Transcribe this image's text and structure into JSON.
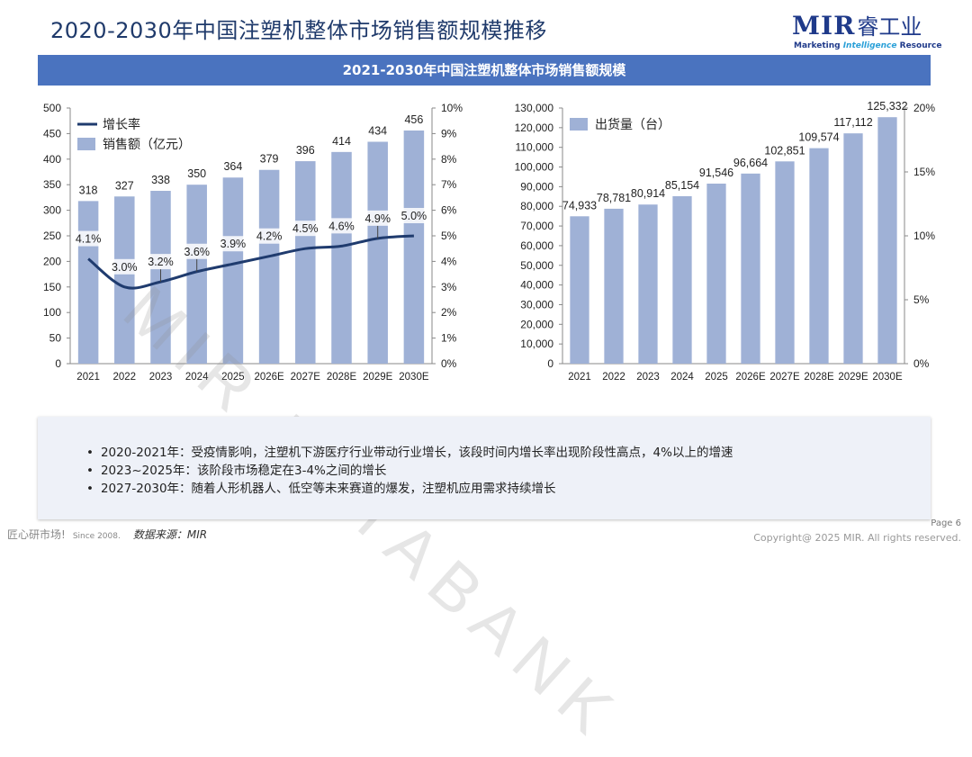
{
  "header": {
    "title": "2020-2030年中国注塑机整体市场销售额规模推移",
    "logo_mir": "MIR",
    "logo_cn": "睿工业",
    "logo_sub_1": "Marketing ",
    "logo_sub_2": "Intelligence",
    "logo_sub_3": " Resource",
    "banner": "2021-2030年中国注塑机整体市场销售额规模"
  },
  "watermark": "MIR DATABANK",
  "chart_data": [
    {
      "type": "bar+line",
      "categories": [
        "2021",
        "2022",
        "2023",
        "2024",
        "2025",
        "2026E",
        "2027E",
        "2028E",
        "2029E",
        "2030E"
      ],
      "series": [
        {
          "name": "销售额（亿元）",
          "kind": "bar",
          "axis": "left",
          "values": [
            318,
            327,
            338,
            350,
            364,
            379,
            396,
            414,
            434,
            456
          ],
          "labels": [
            "318",
            "327",
            "338",
            "350",
            "364",
            "379",
            "396",
            "414",
            "434",
            "456"
          ]
        },
        {
          "name": "增长率",
          "kind": "line",
          "axis": "right",
          "values": [
            4.1,
            3.0,
            3.2,
            3.6,
            3.9,
            4.2,
            4.5,
            4.6,
            4.9,
            5.0
          ],
          "labels": [
            "4.1%",
            "3.0%",
            "3.2%",
            "3.6%",
            "3.9%",
            "4.2%",
            "4.5%",
            "4.6%",
            "4.9%",
            "5.0%"
          ]
        }
      ],
      "ylim": [
        0,
        500
      ],
      "yticks": [
        "0",
        "50",
        "100",
        "150",
        "200",
        "250",
        "300",
        "350",
        "400",
        "450",
        "500"
      ],
      "y2lim": [
        0,
        10
      ],
      "y2ticks": [
        "0%",
        "1%",
        "2%",
        "3%",
        "4%",
        "5%",
        "6%",
        "7%",
        "8%",
        "9%",
        "10%"
      ],
      "legend": [
        "增长率",
        "销售额（亿元）"
      ],
      "colors": {
        "bar": "#9fb1d6",
        "line": "#1f3b6e"
      }
    },
    {
      "type": "bar",
      "categories": [
        "2021",
        "2022",
        "2023",
        "2024",
        "2025",
        "2026E",
        "2027E",
        "2028E",
        "2029E",
        "2030E"
      ],
      "series": [
        {
          "name": "出货量（台）",
          "kind": "bar",
          "axis": "left",
          "values": [
            74933,
            78781,
            80914,
            85154,
            91546,
            96664,
            102851,
            109574,
            117112,
            125332
          ],
          "labels": [
            "74,933",
            "78,781",
            "80,914",
            "85,154",
            "91,546",
            "96,664",
            "102,851",
            "109,574",
            "117,112",
            "125,332"
          ]
        }
      ],
      "ylim": [
        0,
        130000
      ],
      "yticks": [
        "0",
        "10,000",
        "20,000",
        "30,000",
        "40,000",
        "50,000",
        "60,000",
        "70,000",
        "80,000",
        "90,000",
        "100,000",
        "110,000",
        "120,000",
        "130,000"
      ],
      "y2lim": [
        0,
        20
      ],
      "y2ticks": [
        "0%",
        "5%",
        "10%",
        "15%",
        "20%"
      ],
      "legend": [
        "出货量（台）"
      ],
      "colors": {
        "bar": "#9fb1d6"
      }
    }
  ],
  "notes": [
    "2020-2021年：受疫情影响，注塑机下游医疗行业带动行业增长，该段时间内增长率出现阶段性高点，4%以上的增速",
    "2023~2025年：该阶段市场稳定在3-4%之间的增长",
    "2027-2030年：随着人形机器人、低空等未来赛道的爆发，注塑机应用需求持续增长"
  ],
  "footer": {
    "slogan": "匠心研市场!",
    "since": "Since 2008.",
    "source": "数据来源：MIR",
    "page": "Page 6",
    "copyright": "Copyright@ 2025 MIR. All rights reserved."
  }
}
